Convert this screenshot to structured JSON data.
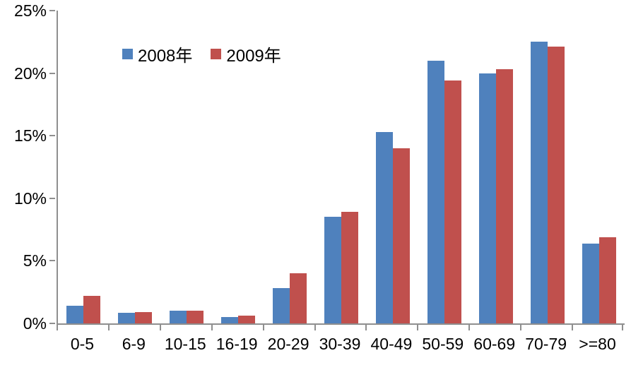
{
  "chart_data": {
    "type": "bar",
    "title": "",
    "xlabel": "",
    "ylabel": "",
    "categories": [
      "0-5",
      "6-9",
      "10-15",
      "16-19",
      "20-29",
      "30-39",
      "40-49",
      "50-59",
      "60-69",
      "70-79",
      ">=80"
    ],
    "series": [
      {
        "name": "2008年",
        "color": "#4F81BD",
        "values": [
          1.4,
          0.85,
          1.0,
          0.5,
          2.8,
          8.5,
          15.3,
          21.0,
          20.0,
          22.5,
          6.4
        ]
      },
      {
        "name": "2009年",
        "color": "#C0504D",
        "values": [
          2.2,
          0.9,
          1.0,
          0.6,
          4.0,
          8.9,
          14.0,
          19.4,
          20.3,
          22.1,
          6.9
        ]
      }
    ],
    "ylim": [
      0,
      25
    ],
    "ytick_step": 5,
    "ytick_labels": [
      "0%",
      "5%",
      "10%",
      "15%",
      "20%",
      "25%"
    ],
    "grid": false,
    "legend_position": "inside-top-left",
    "axis_color": "#8F8F8F",
    "text_color": "#000000",
    "background_color": "#FFFFFF"
  }
}
